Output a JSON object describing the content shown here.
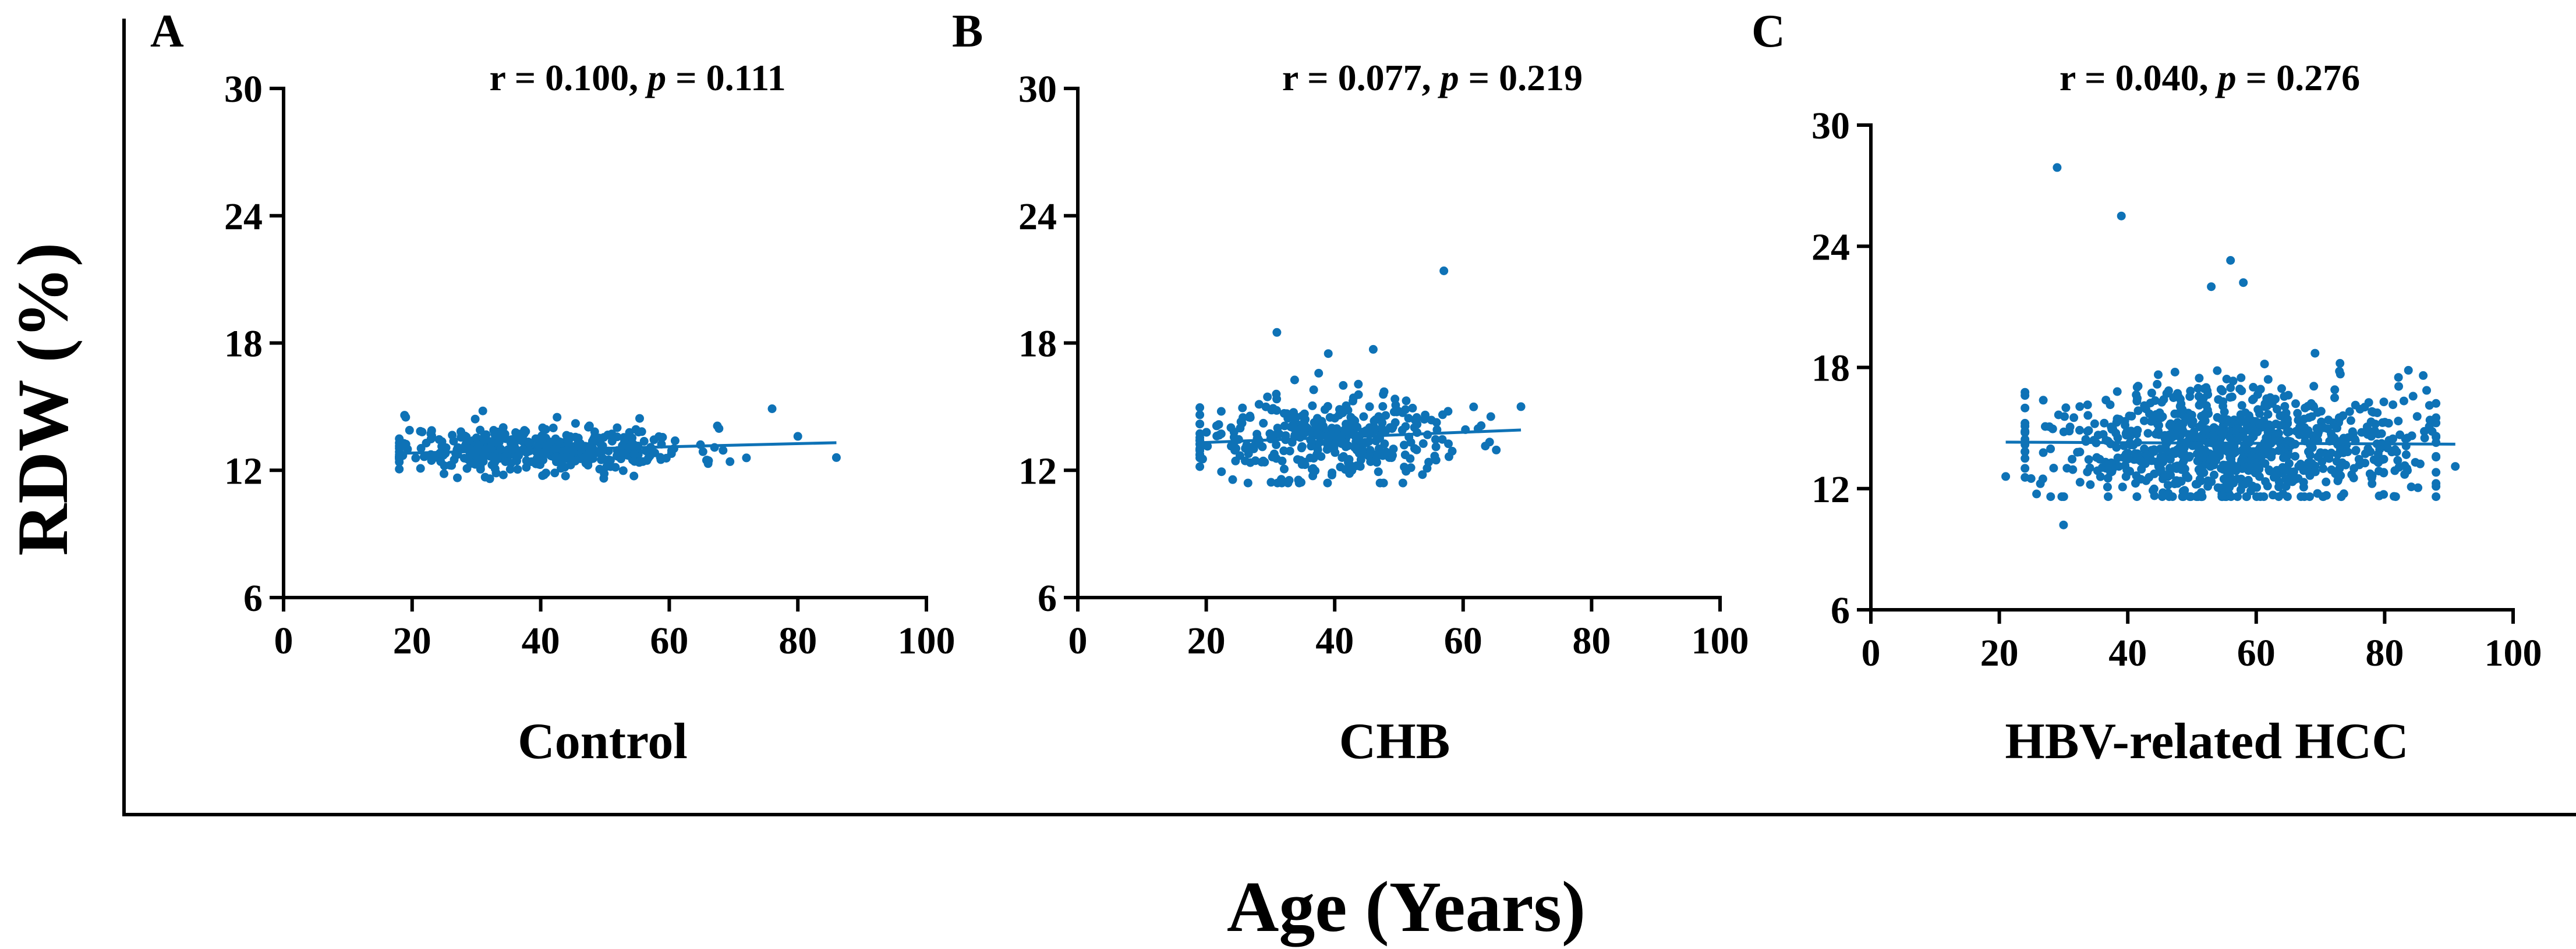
{
  "figure": {
    "xlabel": "Age (Years)",
    "ylabel": "RDW (%)"
  },
  "chart_data": [
    {
      "type": "scatter",
      "panel": "A",
      "group_label": "Control",
      "stat": {
        "r_text": "r = 0.100, ",
        "p_symbol": "p",
        "p_text": " = 0.111"
      },
      "xlim": [
        0,
        100
      ],
      "ylim": [
        6,
        30
      ],
      "xticks": [
        0,
        20,
        40,
        60,
        80,
        100
      ],
      "yticks": [
        6,
        12,
        18,
        24,
        30
      ],
      "point_color": "#0e72b6",
      "fit_line": {
        "x": [
          18,
          86
        ],
        "y": [
          12.8,
          13.3
        ]
      },
      "cloud": {
        "n": 420,
        "x_range": [
          18,
          72
        ],
        "x_center": 40,
        "y_center": 13.0,
        "y_sd": 0.55,
        "y_min": 11.6,
        "y_max": 14.9,
        "seed": 11
      },
      "points": [
        [
          76,
          14.9
        ],
        [
          80,
          13.6
        ],
        [
          86,
          12.6
        ],
        [
          19,
          14.5
        ],
        [
          31,
          14.8
        ]
      ]
    },
    {
      "type": "scatter",
      "panel": "B",
      "group_label": "CHB",
      "stat": {
        "r_text": "r = 0.077, ",
        "p_symbol": "p",
        "p_text": " = 0.219"
      },
      "xlim": [
        0,
        100
      ],
      "ylim": [
        6,
        30
      ],
      "xticks": [
        0,
        20,
        40,
        60,
        80,
        100
      ],
      "yticks": [
        6,
        12,
        18,
        24,
        30
      ],
      "point_color": "#0e72b6",
      "fit_line": {
        "x": [
          19,
          69
        ],
        "y": [
          13.3,
          13.9
        ]
      },
      "cloud": {
        "n": 360,
        "x_range": [
          19,
          68
        ],
        "x_center": 38,
        "y_center": 13.5,
        "y_sd": 1.0,
        "y_min": 11.4,
        "y_max": 17.8,
        "seed": 23
      },
      "points": [
        [
          57,
          21.4
        ],
        [
          31,
          18.5
        ],
        [
          46,
          17.7
        ],
        [
          39,
          17.5
        ],
        [
          69,
          15.0
        ]
      ]
    },
    {
      "type": "scatter",
      "panel": "C",
      "group_label": "HBV-related HCC",
      "stat": {
        "r_text": "r = 0.040,  ",
        "p_symbol": "p",
        "p_text": " = 0.276"
      },
      "xlim": [
        0,
        100
      ],
      "ylim": [
        6,
        30
      ],
      "xticks": [
        0,
        20,
        40,
        60,
        80,
        100
      ],
      "yticks": [
        6,
        12,
        18,
        24,
        30
      ],
      "point_color": "#0e72b6",
      "fit_line": {
        "x": [
          21,
          91
        ],
        "y": [
          14.3,
          14.2
        ]
      },
      "cloud": {
        "n": 900,
        "x_range": [
          24,
          88
        ],
        "x_center": 57,
        "y_center": 14.2,
        "y_sd": 1.5,
        "y_min": 11.6,
        "y_max": 21.0,
        "seed": 37
      },
      "points": [
        [
          29,
          27.9
        ],
        [
          39,
          25.5
        ],
        [
          56,
          23.3
        ],
        [
          58,
          22.2
        ],
        [
          53,
          22.0
        ],
        [
          30,
          10.2
        ],
        [
          21,
          12.6
        ],
        [
          91,
          13.1
        ],
        [
          86,
          17.6
        ]
      ]
    }
  ]
}
